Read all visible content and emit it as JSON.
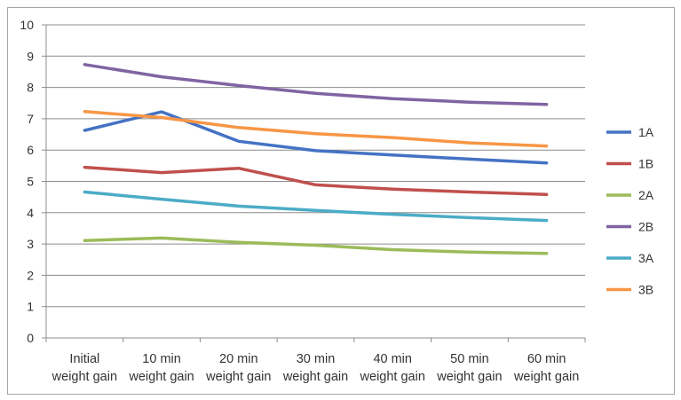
{
  "chart_data": {
    "type": "line",
    "categories": [
      [
        "Initial",
        "weight gain"
      ],
      [
        "10 min",
        "weight gain"
      ],
      [
        "20 min",
        "weight gain"
      ],
      [
        "30 min",
        "weight gain"
      ],
      [
        "40 min",
        "weight gain"
      ],
      [
        "50 min",
        "weight gain"
      ],
      [
        "60 min",
        "weight gain"
      ]
    ],
    "ylim": [
      0,
      10
    ],
    "yticks": [
      0,
      1,
      2,
      3,
      4,
      5,
      6,
      7,
      8,
      9,
      10
    ],
    "grid": true,
    "legend_position": "right",
    "title": "",
    "xlabel": "",
    "ylabel": "",
    "series": [
      {
        "name": "1A",
        "color": "#4472c4",
        "values": [
          6.63,
          7.22,
          6.28,
          5.98,
          5.84,
          5.71,
          5.59
        ]
      },
      {
        "name": "1B",
        "color": "#c0504d",
        "values": [
          5.45,
          5.28,
          5.42,
          4.89,
          4.75,
          4.66,
          4.58
        ]
      },
      {
        "name": "2A",
        "color": "#9bbb59",
        "values": [
          3.11,
          3.19,
          3.05,
          2.96,
          2.82,
          2.74,
          2.7
        ]
      },
      {
        "name": "2B",
        "color": "#8064a2",
        "values": [
          8.73,
          8.34,
          8.06,
          7.81,
          7.64,
          7.53,
          7.46
        ]
      },
      {
        "name": "3A",
        "color": "#4bacc6",
        "values": [
          4.66,
          4.43,
          4.21,
          4.07,
          3.95,
          3.84,
          3.75
        ]
      },
      {
        "name": "3B",
        "color": "#f79646",
        "values": [
          7.23,
          7.04,
          6.72,
          6.52,
          6.4,
          6.23,
          6.13
        ]
      }
    ]
  }
}
